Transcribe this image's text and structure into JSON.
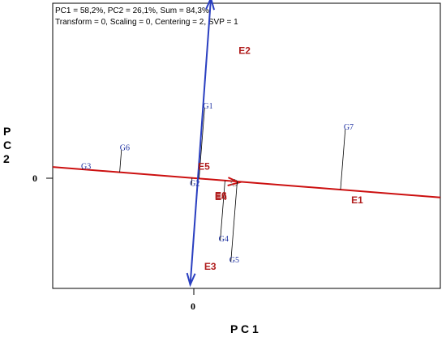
{
  "info": {
    "line1": "PC1 = 58,2%, PC2 = 26,1%, Sum = 84,3%",
    "line2": "Transform = 0, Scaling = 0, Centering = 2, SVP = 1"
  },
  "chart_data": {
    "type": "scatter",
    "xlabel": "P C 1",
    "ylabel_lines": [
      "P",
      "C",
      "2"
    ],
    "x_tick": "0",
    "y_tick": "0",
    "xlim": [
      -2.3,
      3.9
    ],
    "ylim": [
      -1.78,
      2.8
    ],
    "genotypes": [
      {
        "name": "G1",
        "x": 0.13,
        "y": 1.12
      },
      {
        "name": "G2",
        "x": -0.08,
        "y": -0.12
      },
      {
        "name": "G3",
        "x": -1.82,
        "y": 0.15
      },
      {
        "name": "G4",
        "x": 0.38,
        "y": -1.01
      },
      {
        "name": "G5",
        "x": 0.55,
        "y": -1.35
      },
      {
        "name": "G6",
        "x": -1.2,
        "y": 0.45
      },
      {
        "name": "G7",
        "x": 2.38,
        "y": 0.78
      }
    ],
    "environments": [
      {
        "name": "E1",
        "x": 2.5,
        "y": -0.4
      },
      {
        "name": "E2",
        "x": 0.7,
        "y": 2.0
      },
      {
        "name": "E3",
        "x": 0.15,
        "y": -1.47
      },
      {
        "name": "E4",
        "x": 0.32,
        "y": -0.35
      },
      {
        "name": "E5",
        "x": 0.05,
        "y": 0.14
      },
      {
        "name": "E6",
        "x": 0.32,
        "y": -0.33
      }
    ],
    "aec_abscissa": {
      "from": [
        -2.3,
        0.17
      ],
      "to": [
        3.9,
        -0.32
      ]
    },
    "aec_ordinate": {
      "from": [
        0.23,
        2.88
      ],
      "to": [
        -0.1,
        -1.72
      ]
    },
    "average_environment": {
      "x": 0.58,
      "y": -0.07
    },
    "colors": {
      "abscissa": "#cc1010",
      "ordinate": "#2a3fc0",
      "genotype_text": "#1c2fa0",
      "environment_text": "#b01c1c",
      "projection": "#000000"
    }
  }
}
